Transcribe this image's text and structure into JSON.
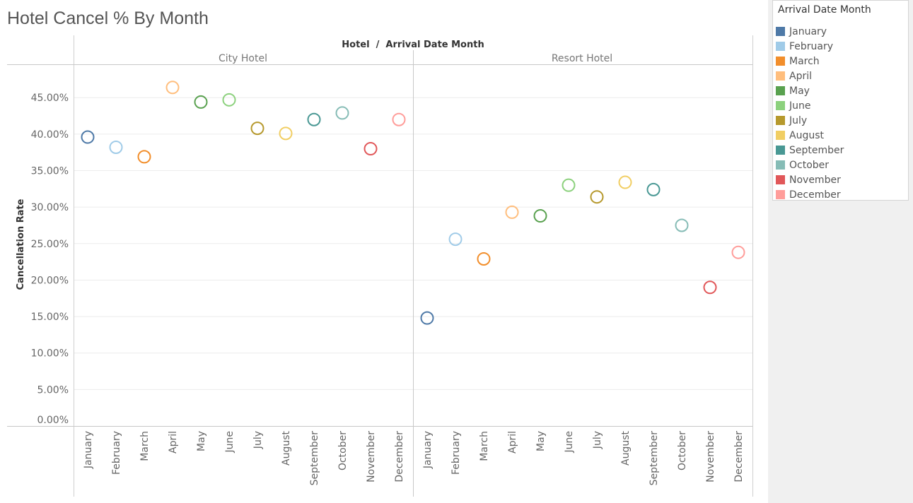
{
  "chart_data": {
    "type": "scatter",
    "title": "Hotel Cancel % By Month",
    "column_header": "Hotel  /  Arrival Date Month",
    "ylabel": "Cancellation Rate",
    "ylim": [
      0,
      0.5
    ],
    "yticks": [
      {
        "value": 0.0,
        "label": "0.00%"
      },
      {
        "value": 0.05,
        "label": "5.00%"
      },
      {
        "value": 0.1,
        "label": "10.00%"
      },
      {
        "value": 0.15,
        "label": "15.00%"
      },
      {
        "value": 0.2,
        "label": "20.00%"
      },
      {
        "value": 0.25,
        "label": "25.00%"
      },
      {
        "value": 0.3,
        "label": "30.00%"
      },
      {
        "value": 0.35,
        "label": "35.00%"
      },
      {
        "value": 0.4,
        "label": "40.00%"
      },
      {
        "value": 0.45,
        "label": "45.00%"
      }
    ],
    "categories": [
      "January",
      "February",
      "March",
      "April",
      "May",
      "June",
      "July",
      "August",
      "September",
      "October",
      "November",
      "December"
    ],
    "panels": [
      {
        "name": "City Hotel",
        "values": [
          0.396,
          0.382,
          0.369,
          0.464,
          0.444,
          0.447,
          0.408,
          0.401,
          0.42,
          0.429,
          0.38,
          0.42
        ]
      },
      {
        "name": "Resort Hotel",
        "values": [
          0.148,
          0.256,
          0.229,
          0.293,
          0.288,
          0.33,
          0.314,
          0.334,
          0.324,
          0.275,
          0.19,
          0.238
        ]
      }
    ],
    "grid": true,
    "legend": {
      "title": "Arrival Date Month",
      "position": "right",
      "items": [
        {
          "label": "January",
          "color": "#4e79a7"
        },
        {
          "label": "February",
          "color": "#a0cbe8"
        },
        {
          "label": "March",
          "color": "#f28e2b"
        },
        {
          "label": "April",
          "color": "#ffbe7d"
        },
        {
          "label": "May",
          "color": "#59a14f"
        },
        {
          "label": "June",
          "color": "#8cd17d"
        },
        {
          "label": "July",
          "color": "#b6992d"
        },
        {
          "label": "August",
          "color": "#f1ce63"
        },
        {
          "label": "September",
          "color": "#499894"
        },
        {
          "label": "October",
          "color": "#86bcb6"
        },
        {
          "label": "November",
          "color": "#e15759"
        },
        {
          "label": "December",
          "color": "#ff9d9a"
        }
      ]
    }
  }
}
